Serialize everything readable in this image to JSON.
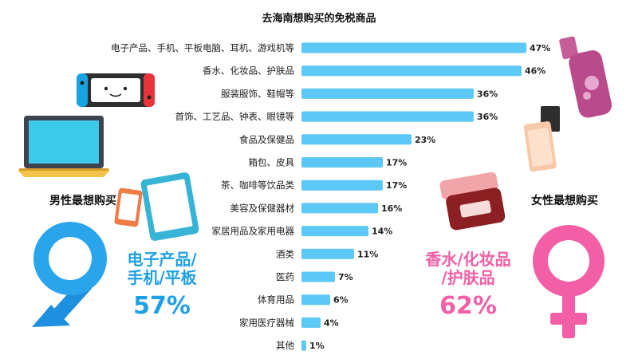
{
  "chart_data": {
    "type": "bar",
    "orientation": "horizontal",
    "title": "去海南想购买的免税商品",
    "categories": [
      "电子产品、手机、平板电脑、耳机、游戏机等",
      "香水、化妆品、护肤品",
      "服装服饰、鞋帽等",
      "首饰、工艺品、钟表、眼镜等",
      "食品及保健品",
      "箱包、皮具",
      "茶、咖啡等饮品类",
      "美容及保健器材",
      "家居用品及家用电器",
      "酒类",
      "医药",
      "体育用品",
      "家用医疗器械",
      "其他"
    ],
    "values": [
      47,
      46,
      36,
      36,
      23,
      17,
      17,
      16,
      14,
      11,
      7,
      6,
      4,
      1
    ],
    "value_labels": [
      "47%",
      "46%",
      "36%",
      "36%",
      "23%",
      "17%",
      "17%",
      "16%",
      "14%",
      "11%",
      "7%",
      "6%",
      "4%",
      "1%"
    ],
    "unit": "%",
    "bar_color": "#5bc8f5",
    "xlim": [
      0,
      47
    ],
    "grid": false
  },
  "male": {
    "label": "男性最想购买",
    "category_line1": "电子产品/",
    "category_line2": "手机/平板",
    "percent": "57%",
    "color": "#1fa0e6"
  },
  "female": {
    "label": "女性最想购买",
    "category_line1": "香水/化妆品",
    "category_line2": "/护肤品",
    "percent": "62%",
    "color": "#f25fa6"
  },
  "icons": [
    "game-console-icon",
    "laptop-icon",
    "smartphone-icon",
    "tablet-icon",
    "male-symbol-icon",
    "perfume-bottle-icon",
    "cosmetic-bottle-icon",
    "cream-jar-icon",
    "female-symbol-icon"
  ]
}
